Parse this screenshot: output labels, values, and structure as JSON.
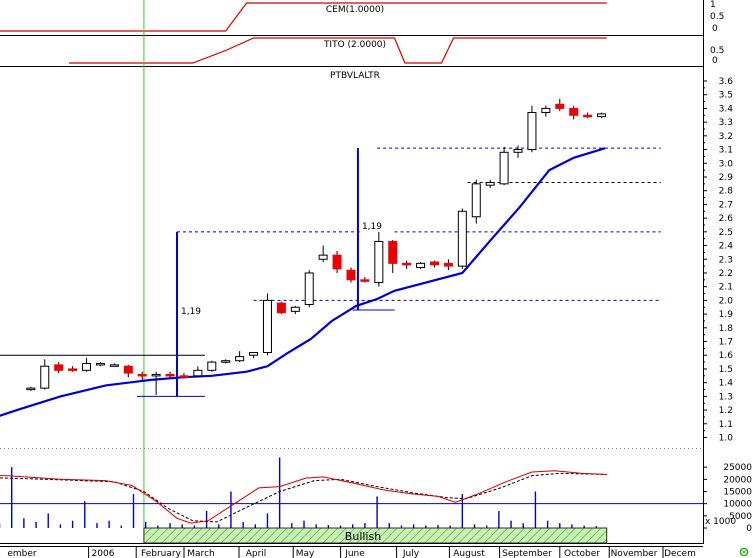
{
  "chart_data": {
    "type": "candlestick",
    "title": "PTBVLALTR",
    "indicators": [
      {
        "label": "CEM(1.0000)",
        "color": "#d40000",
        "points": [
          [
            "2005-10-01",
            0
          ],
          [
            "2006-03-20",
            0
          ],
          [
            "2006-04-01",
            1
          ],
          [
            "2006-10-25",
            1
          ]
        ]
      },
      {
        "label": "TITO (2.0000)",
        "color": "#d40000",
        "points": [
          [
            "2005-12-20",
            0
          ],
          [
            "2006-03-01",
            0
          ],
          [
            "2006-03-20",
            0.5
          ],
          [
            "2006-04-05",
            1
          ],
          [
            "2006-06-25",
            1
          ],
          [
            "2006-07-01",
            0
          ],
          [
            "2006-07-22",
            0
          ],
          [
            "2006-07-29",
            1
          ],
          [
            "2006-10-25",
            1
          ]
        ]
      }
    ],
    "indicator_axis": {
      "top_ticks": [
        "1",
        "0.5",
        "0"
      ],
      "bottom_ticks": [
        "0.5",
        "0"
      ]
    },
    "x_labels": [
      "ember",
      "2006",
      "February",
      "March",
      "April",
      "May",
      "June",
      "July",
      "August",
      "September",
      "October",
      "November",
      "Decem"
    ],
    "y_ticks": [
      1.0,
      1.1,
      1.2,
      1.3,
      1.4,
      1.5,
      1.6,
      1.7,
      1.8,
      1.9,
      2.0,
      2.1,
      2.2,
      2.3,
      2.4,
      2.5,
      2.6,
      2.7,
      2.8,
      2.9,
      3.0,
      3.1,
      3.2,
      3.3,
      3.4,
      3.5,
      3.6
    ],
    "ylim": [
      0.97,
      3.65
    ],
    "candles": [
      [
        "2005-11-28",
        1.35,
        1.37,
        1.34,
        1.36
      ],
      [
        "2005-12-06",
        1.36,
        1.57,
        1.35,
        1.52
      ],
      [
        "2005-12-14",
        1.53,
        1.55,
        1.47,
        1.49
      ],
      [
        "2005-12-22",
        1.5,
        1.52,
        1.48,
        1.49
      ],
      [
        "2005-12-30",
        1.49,
        1.58,
        1.48,
        1.54
      ],
      [
        "2006-01-07",
        1.53,
        1.55,
        1.52,
        1.54
      ],
      [
        "2006-01-15",
        1.53,
        1.54,
        1.52,
        1.53
      ],
      [
        "2006-01-23",
        1.52,
        1.53,
        1.44,
        1.47
      ],
      [
        "2006-01-31",
        1.46,
        1.48,
        1.42,
        1.45
      ],
      [
        "2006-02-08",
        1.45,
        1.48,
        1.31,
        1.46
      ],
      [
        "2006-02-16",
        1.46,
        1.48,
        1.43,
        1.45
      ],
      [
        "2006-02-24",
        1.45,
        1.47,
        1.43,
        1.44
      ],
      [
        "2006-03-04",
        1.45,
        1.52,
        1.44,
        1.49
      ],
      [
        "2006-03-12",
        1.49,
        1.56,
        1.48,
        1.55
      ],
      [
        "2006-03-20",
        1.55,
        1.57,
        1.54,
        1.56
      ],
      [
        "2006-03-28",
        1.56,
        1.63,
        1.55,
        1.59
      ],
      [
        "2006-04-05",
        1.6,
        1.62,
        1.58,
        1.62
      ],
      [
        "2006-04-13",
        1.62,
        2.05,
        1.6,
        2.0
      ],
      [
        "2006-04-21",
        1.98,
        1.99,
        1.9,
        1.91
      ],
      [
        "2006-04-29",
        1.92,
        1.96,
        1.9,
        1.95
      ],
      [
        "2006-05-07",
        1.97,
        2.22,
        1.95,
        2.2
      ],
      [
        "2006-05-15",
        2.3,
        2.4,
        2.28,
        2.33
      ],
      [
        "2006-05-23",
        2.33,
        2.36,
        2.2,
        2.23
      ],
      [
        "2006-05-31",
        2.22,
        2.24,
        2.13,
        2.15
      ],
      [
        "2006-06-08",
        2.15,
        2.17,
        2.13,
        2.14
      ],
      [
        "2006-06-16",
        2.13,
        2.5,
        2.1,
        2.43
      ],
      [
        "2006-06-24",
        2.43,
        2.44,
        2.2,
        2.27
      ],
      [
        "2006-07-02",
        2.27,
        2.29,
        2.23,
        2.26
      ],
      [
        "2006-07-10",
        2.24,
        2.28,
        2.23,
        2.27
      ],
      [
        "2006-07-18",
        2.28,
        2.29,
        2.24,
        2.26
      ],
      [
        "2006-07-26",
        2.27,
        2.3,
        2.22,
        2.25
      ],
      [
        "2006-08-03",
        2.25,
        2.67,
        2.23,
        2.65
      ],
      [
        "2006-08-11",
        2.61,
        2.88,
        2.56,
        2.85
      ],
      [
        "2006-08-19",
        2.84,
        2.88,
        2.82,
        2.86
      ],
      [
        "2006-08-27",
        2.85,
        3.12,
        2.84,
        3.08
      ],
      [
        "2006-09-04",
        3.08,
        3.13,
        3.04,
        3.1
      ],
      [
        "2006-09-12",
        3.1,
        3.42,
        3.08,
        3.37
      ],
      [
        "2006-09-20",
        3.37,
        3.42,
        3.34,
        3.4
      ],
      [
        "2006-09-28",
        3.43,
        3.47,
        3.38,
        3.4
      ],
      [
        "2006-10-06",
        3.4,
        3.42,
        3.32,
        3.35
      ],
      [
        "2006-10-14",
        3.35,
        3.37,
        3.33,
        3.34
      ],
      [
        "2006-10-22",
        3.34,
        3.37,
        3.33,
        3.36
      ]
    ],
    "moving_average": {
      "color": "#0000cc",
      "points": [
        [
          "2005-11-01",
          1.12
        ],
        [
          "2005-11-20",
          1.2
        ],
        [
          "2005-12-15",
          1.3
        ],
        [
          "2006-01-10",
          1.38
        ],
        [
          "2006-02-05",
          1.42
        ],
        [
          "2006-02-24",
          1.44
        ],
        [
          "2006-03-12",
          1.45
        ],
        [
          "2006-04-01",
          1.48
        ],
        [
          "2006-04-13",
          1.52
        ],
        [
          "2006-04-25",
          1.62
        ],
        [
          "2006-05-08",
          1.72
        ],
        [
          "2006-05-20",
          1.85
        ],
        [
          "2006-06-03",
          1.96
        ],
        [
          "2006-06-15",
          2.01
        ],
        [
          "2006-06-25",
          2.07
        ],
        [
          "2006-07-10",
          2.12
        ],
        [
          "2006-08-03",
          2.2
        ],
        [
          "2006-08-20",
          2.45
        ],
        [
          "2006-09-05",
          2.68
        ],
        [
          "2006-09-22",
          2.95
        ],
        [
          "2006-10-06",
          3.04
        ],
        [
          "2006-10-24",
          3.11
        ]
      ]
    },
    "horizontal_lines": [
      {
        "y": 1.6,
        "from": "2005-10-01",
        "to": "2006-03-08",
        "style": "solid",
        "color": "#000000"
      },
      {
        "y": 1.3,
        "from": "2006-01-28",
        "to": "2006-03-08",
        "style": "solid",
        "color": "#0000cc"
      },
      {
        "y": 2.5,
        "from": "2006-02-20",
        "to": "2006-06-05",
        "style": "dashed",
        "color": "#0000cc"
      },
      {
        "y": 2.0,
        "from": "2006-04-05",
        "to": "2006-11-25",
        "style": "dashed",
        "color": "#0000cc"
      },
      {
        "y": 1.93,
        "from": "2006-06-01",
        "to": "2006-06-25",
        "style": "solid",
        "color": "#0000cc"
      },
      {
        "y": 3.11,
        "from": "2006-06-15",
        "to": "2006-11-25",
        "style": "dashed",
        "color": "#0000cc"
      },
      {
        "y": 2.5,
        "from": "2006-06-25",
        "to": "2006-11-25",
        "style": "dashed",
        "color": "#0000cc"
      },
      {
        "y": 2.86,
        "from": "2006-08-06",
        "to": "2006-11-25",
        "style": "dashed",
        "color": "#000000"
      }
    ],
    "measures": [
      {
        "x": "2006-02-20",
        "from": 1.3,
        "to": 2.5,
        "label": "1,19",
        "color": "#0000cc"
      },
      {
        "x": "2006-06-04",
        "from": 1.93,
        "to": 3.11,
        "label": "1,19",
        "color": "#0000cc"
      }
    ],
    "vertical_marker": {
      "x": "2006-02-01",
      "color": "#33cc33"
    },
    "volume": {
      "y_ticks": [
        "25000",
        "20000",
        "15000",
        "10000",
        "5000",
        "0"
      ],
      "unit_label": "x 1000",
      "ylim": [
        0,
        30000
      ],
      "reference_level": 10000,
      "values": [
        [
          "2005-11-03",
          1500
        ],
        [
          "2005-11-10",
          2000
        ],
        [
          "2005-11-17",
          25000
        ],
        [
          "2005-11-24",
          4000
        ],
        [
          "2005-12-01",
          2500
        ],
        [
          "2005-12-08",
          6000
        ],
        [
          "2005-12-15",
          1500
        ],
        [
          "2005-12-22",
          3000
        ],
        [
          "2005-12-29",
          11000
        ],
        [
          "2006-01-05",
          2000
        ],
        [
          "2006-01-12",
          3000
        ],
        [
          "2006-01-19",
          1000
        ],
        [
          "2006-01-26",
          14000
        ],
        [
          "2006-02-02",
          2500
        ],
        [
          "2006-02-09",
          1000
        ],
        [
          "2006-02-16",
          2000
        ],
        [
          "2006-02-23",
          1500
        ],
        [
          "2006-03-02",
          1000
        ],
        [
          "2006-03-09",
          7000
        ],
        [
          "2006-03-16",
          1500
        ],
        [
          "2006-03-23",
          15000
        ],
        [
          "2006-03-30",
          2500
        ],
        [
          "2006-04-06",
          1500
        ],
        [
          "2006-04-13",
          6000
        ],
        [
          "2006-04-20",
          29000
        ],
        [
          "2006-04-27",
          2000
        ],
        [
          "2006-05-04",
          3000
        ],
        [
          "2006-05-11",
          1500
        ],
        [
          "2006-05-18",
          1200
        ],
        [
          "2006-05-25",
          1000
        ],
        [
          "2006-06-01",
          1500
        ],
        [
          "2006-06-08",
          2000
        ],
        [
          "2006-06-15",
          13000
        ],
        [
          "2006-06-22",
          2000
        ],
        [
          "2006-06-29",
          1000
        ],
        [
          "2006-07-06",
          1500
        ],
        [
          "2006-07-13",
          1000
        ],
        [
          "2006-07-20",
          1200
        ],
        [
          "2006-07-27",
          1000
        ],
        [
          "2006-08-03",
          14000
        ],
        [
          "2006-08-10",
          1500
        ],
        [
          "2006-08-17",
          1000
        ],
        [
          "2006-08-24",
          7000
        ],
        [
          "2006-08-31",
          3000
        ],
        [
          "2006-09-07",
          2000
        ],
        [
          "2006-09-14",
          15000
        ],
        [
          "2006-09-21",
          3000
        ],
        [
          "2006-09-28",
          2000
        ],
        [
          "2006-10-05",
          1500
        ],
        [
          "2006-10-12",
          1000
        ],
        [
          "2006-10-19",
          800
        ]
      ],
      "oscillator_red": [
        [
          "2005-10-01",
          22000
        ],
        [
          "2005-11-15",
          21500
        ],
        [
          "2005-12-15",
          20000
        ],
        [
          "2006-01-10",
          19500
        ],
        [
          "2006-01-25",
          17500
        ],
        [
          "2006-02-08",
          11000
        ],
        [
          "2006-02-20",
          4000
        ],
        [
          "2006-02-28",
          2000
        ],
        [
          "2006-03-10",
          3000
        ],
        [
          "2006-03-25",
          10000
        ],
        [
          "2006-04-08",
          16500
        ],
        [
          "2006-04-20",
          17000
        ],
        [
          "2006-05-05",
          20500
        ],
        [
          "2006-05-15",
          21000
        ],
        [
          "2006-06-01",
          18500
        ],
        [
          "2006-06-20",
          15500
        ],
        [
          "2006-07-05",
          14000
        ],
        [
          "2006-07-20",
          13000
        ],
        [
          "2006-07-30",
          10500
        ],
        [
          "2006-08-12",
          14000
        ],
        [
          "2006-08-28",
          19000
        ],
        [
          "2006-09-12",
          23000
        ],
        [
          "2006-09-25",
          23500
        ],
        [
          "2006-10-10",
          22500
        ],
        [
          "2006-10-25",
          22000
        ]
      ],
      "oscillator_black": [
        [
          "2005-10-01",
          21000
        ],
        [
          "2005-11-15",
          20500
        ],
        [
          "2005-12-15",
          19800
        ],
        [
          "2006-01-15",
          19000
        ],
        [
          "2006-02-01",
          15000
        ],
        [
          "2006-02-15",
          8000
        ],
        [
          "2006-03-01",
          3000
        ],
        [
          "2006-03-15",
          2500
        ],
        [
          "2006-04-01",
          8500
        ],
        [
          "2006-04-20",
          15000
        ],
        [
          "2006-05-10",
          19500
        ],
        [
          "2006-05-25",
          20000
        ],
        [
          "2006-06-15",
          17000
        ],
        [
          "2006-07-05",
          14500
        ],
        [
          "2006-07-25",
          12500
        ],
        [
          "2006-08-05",
          12000
        ],
        [
          "2006-08-25",
          16500
        ],
        [
          "2006-09-12",
          21500
        ],
        [
          "2006-09-28",
          22500
        ],
        [
          "2006-10-25",
          22000
        ]
      ]
    },
    "signal_label": "Bullish",
    "signal_band": {
      "from": "2006-02-01",
      "to": "2006-10-25",
      "fill": "#c8f0b4",
      "hatch": "#33aa33"
    }
  }
}
